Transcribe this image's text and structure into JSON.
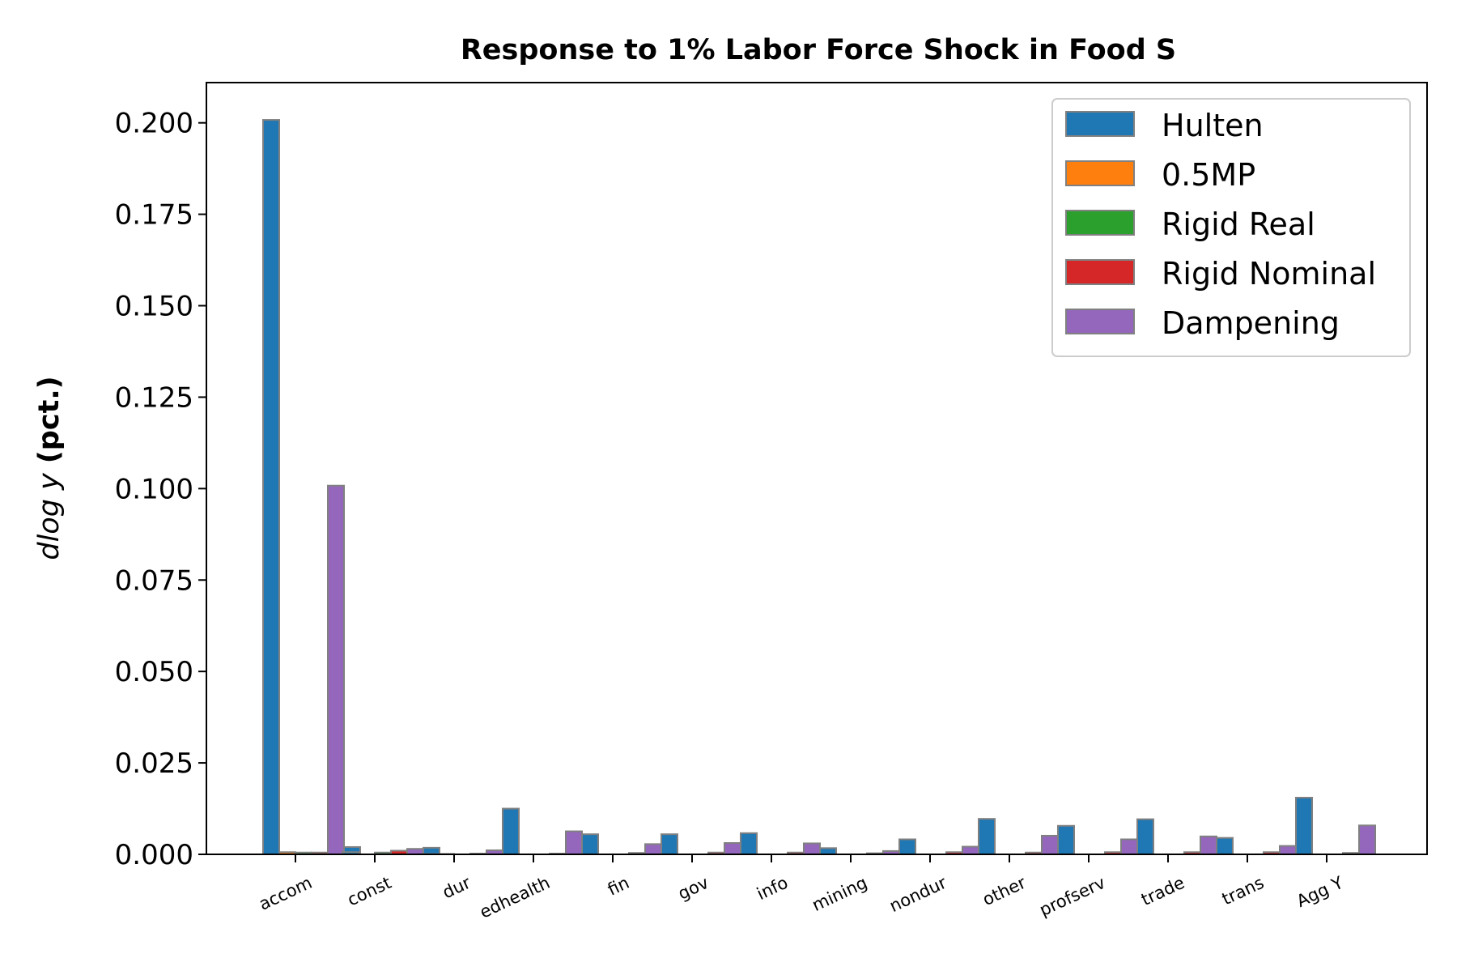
{
  "chart_data": {
    "type": "bar",
    "title": "Response to 1% Labor Force Shock in Food S",
    "ylabel_var": "dlog y",
    "ylabel_unit": "(pct.)",
    "xlabel": "",
    "ylim": [
      0,
      0.211
    ],
    "grid": false,
    "legend_position": "top-right",
    "yticks": [
      0.0,
      0.025,
      0.05,
      0.075,
      0.1,
      0.125,
      0.15,
      0.175,
      0.2
    ],
    "ytick_labels": [
      "0.000",
      "0.025",
      "0.050",
      "0.075",
      "0.100",
      "0.125",
      "0.150",
      "0.175",
      "0.200"
    ],
    "categories": [
      "accom",
      "const",
      "dur",
      "edhealth",
      "fin",
      "gov",
      "info",
      "mining",
      "nondur",
      "other",
      "profserv",
      "trade",
      "trans",
      "Agg Y"
    ],
    "series": [
      {
        "name": "Hulten",
        "color": "#1f77b4",
        "values": [
          0.2008,
          0.0006,
          0.0001,
          0.0,
          0.0,
          0.0,
          0.0,
          0.0,
          0.0,
          0.0,
          0.0,
          0.0,
          0.0,
          0.0
        ]
      },
      {
        "name": "0.5MP",
        "color": "#ff7f0e",
        "values": [
          0.0006,
          0.0,
          0.0001,
          0.0,
          0.0,
          0.0,
          0.0,
          0.0,
          0.0,
          0.0,
          0.0,
          0.0,
          0.0,
          0.0
        ]
      },
      {
        "name": "Rigid Real",
        "color": "#2ca02c",
        "values": [
          0.0005,
          0.0005,
          0.0,
          0.0,
          0.0,
          0.0,
          0.0,
          0.0,
          0.0,
          0.0,
          0.0,
          0.0,
          0.0,
          0.0
        ]
      },
      {
        "name": "Rigid Nominal",
        "color": "#d62728",
        "values": [
          0.0005,
          0.001,
          0.0002,
          0.0002,
          0.0004,
          0.0005,
          0.0005,
          0.0003,
          0.0006,
          0.0005,
          0.0006,
          0.0006,
          0.0006,
          0.0004
        ]
      },
      {
        "name": "Dampening",
        "color": "#9467bd",
        "values": [
          0.1008,
          0.0015,
          0.0011,
          0.0063,
          0.0028,
          0.0031,
          0.003,
          0.0009,
          0.0021,
          0.0051,
          0.0041,
          0.0049,
          0.0023,
          0.0079
        ]
      }
    ],
    "between_bars": [
      0.002,
      0.0018,
      0.0125,
      0.0055,
      0.0055,
      0.0058,
      0.0017,
      0.0041,
      0.0097,
      0.0078,
      0.0096,
      0.0045,
      0.0155
    ]
  }
}
